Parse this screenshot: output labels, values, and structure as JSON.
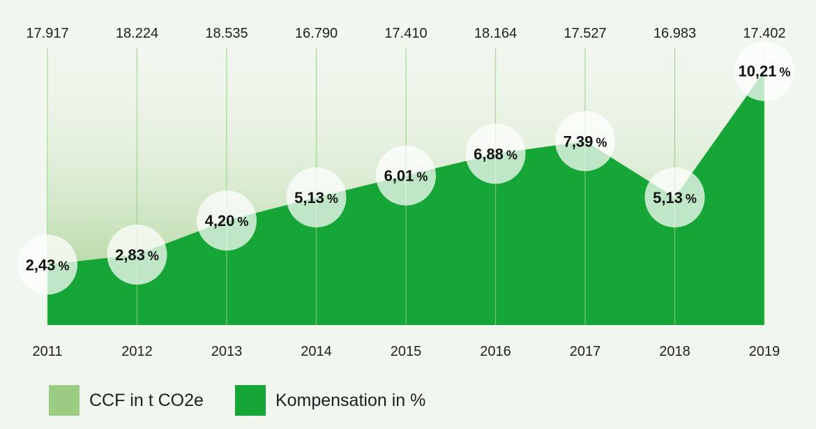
{
  "chart_data": {
    "type": "area",
    "categories": [
      "2011",
      "2012",
      "2013",
      "2014",
      "2015",
      "2016",
      "2017",
      "2018",
      "2019"
    ],
    "ccf_labels": [
      "17.917",
      "18.224",
      "18.535",
      "16.790",
      "17.410",
      "18.164",
      "17.527",
      "16.983",
      "17.402"
    ],
    "ccf_values": [
      17917,
      18224,
      18535,
      16790,
      17410,
      18164,
      17527,
      16983,
      17402
    ],
    "pct_labels": [
      "2,43",
      "2,83",
      "4,20",
      "5,13",
      "6,01",
      "6,88",
      "7,39",
      "5,13",
      "10,21"
    ],
    "pct_values": [
      2.43,
      2.83,
      4.2,
      5.13,
      6.01,
      6.88,
      7.39,
      5.13,
      10.21
    ],
    "pct_unit": "%",
    "ylim": [
      0,
      12.5
    ],
    "colors": {
      "ccf": "#9ccc84",
      "kompensation": "#16a637",
      "gridline": "#8fcf7f",
      "bubble": "#ffffff"
    }
  },
  "legend": [
    {
      "label": "CCF in t CO2e",
      "color": "#9ccc84"
    },
    {
      "label": "Kompensation in %",
      "color": "#16a637"
    }
  ]
}
